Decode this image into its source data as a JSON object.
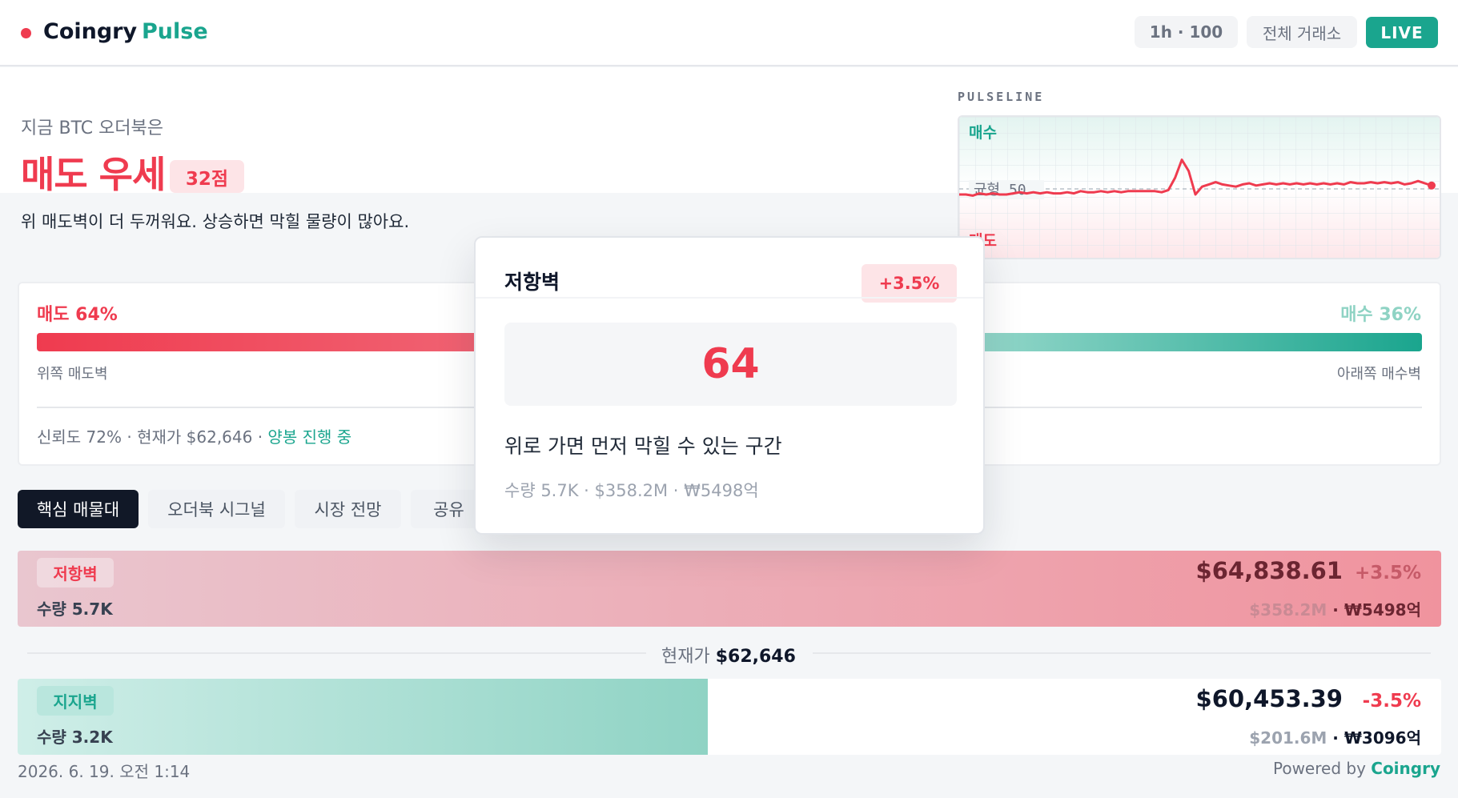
{
  "header": {
    "brand_name": "Coingry",
    "brand_sub": "Pulse",
    "range_label": "1h · 100",
    "exchange_label": "전체 거래소",
    "live_label": "LIVE"
  },
  "summary": {
    "lead": "지금 BTC 오더북은",
    "verdict": "매도 우세",
    "score": "32점",
    "description": "위 매도벽이 더 두꺼워요. 상승하면 막힐 물량이 많아요."
  },
  "pulseline": {
    "label": "PULSELINE",
    "buy_label": "매수",
    "sell_label": "매도",
    "balance_label": "균형 50",
    "values": [
      45,
      45,
      44,
      46,
      45,
      46,
      45,
      45,
      46,
      47,
      46,
      47,
      46,
      47,
      46,
      46,
      47,
      46,
      48,
      47,
      47,
      48,
      47,
      48,
      47,
      48,
      48,
      48,
      48,
      48,
      47,
      49,
      60,
      76,
      66,
      45,
      52,
      54,
      56,
      54,
      53,
      52,
      54,
      55,
      53,
      54,
      55,
      54,
      55,
      54,
      55,
      54,
      55,
      54,
      55,
      54,
      55,
      54,
      56,
      55,
      55,
      56,
      55,
      56,
      55,
      56,
      54,
      55,
      57,
      55,
      53
    ]
  },
  "ratio": {
    "sell_label": "매도 64%",
    "buy_label": "매수 36%",
    "sell_fraction": 0.64,
    "sell_wall_label": "위쪽 매도벽",
    "buy_wall_label": "아래쪽 매수벽",
    "meta_text": "신뢰도 72% · 현재가 $62,646 · ",
    "trend_label": "양봉 진행 중"
  },
  "tabs": [
    {
      "label": "핵심 매물대"
    },
    {
      "label": "오더북 시그널"
    },
    {
      "label": "시장 전망"
    },
    {
      "label": "공유"
    }
  ],
  "resistance": {
    "tag": "저항벽",
    "volume": "수량 5.7K",
    "price": "$64,838.61",
    "change": "+3.5%",
    "usd_value": "$358.2M",
    "separator": " · ",
    "krw_value": "₩5498억"
  },
  "current_price": {
    "label": "현재가 ",
    "value": "$62,646"
  },
  "support": {
    "tag": "지지벽",
    "volume": "수량 3.2K",
    "fill_fraction": 0.485,
    "price": "$60,453.39",
    "change": "-3.5%",
    "usd_value": "$201.6M",
    "separator": " · ",
    "krw_value": "₩3096억"
  },
  "footer": {
    "timestamp": "2026. 6. 19. 오전 1:14",
    "powered_label": "Powered by ",
    "powered_brand": "Coingry"
  },
  "popup": {
    "title": "저항벽",
    "badge": "+3.5%",
    "score": "64",
    "description": "위로 가면 먼저 막힐 수 있는 구간",
    "meta": "수량 5.7K · $358.2M · ₩5498억"
  },
  "colors": {
    "sell": "#ef3b4f",
    "buy": "#1aa58e",
    "ink": "#0f172a"
  }
}
